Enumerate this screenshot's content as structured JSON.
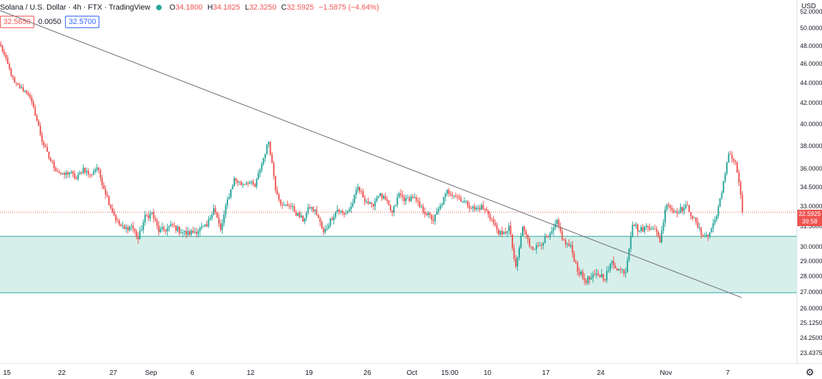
{
  "header": {
    "symbol": "Solana / U.S. Dollar · 4h · FTX · TradingView",
    "open_label": "O",
    "open": "34.1800",
    "high_label": "H",
    "high": "34.1825",
    "low_label": "L",
    "low": "32.3250",
    "close_label": "C",
    "close": "32.5925",
    "change": "−1.5875 (−4.64%)"
  },
  "quote": {
    "bid": "32.5650",
    "spread": "0.0050",
    "ask": "32.5700"
  },
  "axis": {
    "currency": "USD",
    "y_ticks": [
      "52.0000",
      "50.0000",
      "48.0000",
      "46.0000",
      "44.0000",
      "42.0000",
      "40.0000",
      "38.0000",
      "36.0000",
      "34.5000",
      "33.0000",
      "31.5000",
      "30.0000",
      "29.0000",
      "28.0000",
      "27.0000",
      "26.0000",
      "25.1250",
      "24.2500",
      "23.4375"
    ],
    "x_ticks": [
      "15",
      "22",
      "27",
      "Sep",
      "6",
      "12",
      "19",
      "26",
      "Oct",
      "15:00",
      "10",
      "17",
      "24",
      "Nov",
      "7"
    ],
    "last_price": "32.5925",
    "countdown": "39:58"
  },
  "colors": {
    "up": "#26a69a",
    "down": "#ef5350",
    "trendline": "#787b86",
    "zone_fill": "#d6efea",
    "zone_border": "#26a69a"
  },
  "chart_data": {
    "type": "candlestick",
    "title": "Solana / U.S. Dollar · 4h · FTX",
    "y_scale": "log",
    "ylim": [
      22.9,
      53.5
    ],
    "series": [
      {
        "name": "SOL/USD",
        "close_path": [
          [
            0,
            48.0
          ],
          [
            4,
            46.0
          ],
          [
            8,
            44.0
          ],
          [
            12,
            43.5
          ],
          [
            16,
            43.0
          ],
          [
            20,
            41.0
          ],
          [
            24,
            38.5
          ],
          [
            28,
            37.0
          ],
          [
            32,
            36.0
          ],
          [
            36,
            35.5
          ],
          [
            40,
            35.8
          ],
          [
            44,
            35.2
          ],
          [
            48,
            36.1
          ],
          [
            52,
            35.5
          ],
          [
            56,
            36.2
          ],
          [
            60,
            34.5
          ],
          [
            64,
            33.0
          ],
          [
            68,
            31.8
          ],
          [
            72,
            31.3
          ],
          [
            76,
            31.6
          ],
          [
            80,
            30.6
          ],
          [
            84,
            32.2
          ],
          [
            88,
            32.5
          ],
          [
            92,
            31.2
          ],
          [
            96,
            31.3
          ],
          [
            100,
            31.6
          ],
          [
            104,
            31.2
          ],
          [
            108,
            31.0
          ],
          [
            112,
            31.1
          ],
          [
            116,
            31.3
          ],
          [
            120,
            31.5
          ],
          [
            124,
            33.0
          ],
          [
            128,
            31.2
          ],
          [
            132,
            33.5
          ],
          [
            136,
            35.2
          ],
          [
            140,
            34.8
          ],
          [
            144,
            35.0
          ],
          [
            148,
            34.6
          ],
          [
            152,
            36.5
          ],
          [
            156,
            38.5
          ],
          [
            160,
            34.5
          ],
          [
            164,
            33.0
          ],
          [
            168,
            33.2
          ],
          [
            172,
            32.5
          ],
          [
            176,
            32.0
          ],
          [
            180,
            33.0
          ],
          [
            184,
            32.5
          ],
          [
            188,
            31.0
          ],
          [
            192,
            32.0
          ],
          [
            196,
            32.8
          ],
          [
            200,
            32.4
          ],
          [
            204,
            33.0
          ],
          [
            208,
            34.5
          ],
          [
            212,
            33.6
          ],
          [
            216,
            33.0
          ],
          [
            220,
            34.0
          ],
          [
            224,
            33.5
          ],
          [
            228,
            32.5
          ],
          [
            232,
            34.0
          ],
          [
            236,
            33.5
          ],
          [
            240,
            33.8
          ],
          [
            244,
            33.0
          ],
          [
            248,
            32.5
          ],
          [
            252,
            32.0
          ],
          [
            256,
            33.0
          ],
          [
            260,
            34.2
          ],
          [
            264,
            34.0
          ],
          [
            268,
            33.6
          ],
          [
            272,
            33.2
          ],
          [
            276,
            32.8
          ],
          [
            280,
            33.0
          ],
          [
            284,
            32.5
          ],
          [
            288,
            31.5
          ],
          [
            292,
            30.8
          ],
          [
            296,
            31.5
          ],
          [
            300,
            28.5
          ],
          [
            304,
            31.5
          ],
          [
            308,
            30.2
          ],
          [
            312,
            30.0
          ],
          [
            316,
            30.5
          ],
          [
            320,
            30.8
          ],
          [
            324,
            31.8
          ],
          [
            328,
            30.4
          ],
          [
            332,
            30.0
          ],
          [
            336,
            28.5
          ],
          [
            340,
            27.8
          ],
          [
            344,
            27.9
          ],
          [
            348,
            28.2
          ],
          [
            352,
            28.0
          ],
          [
            356,
            29.0
          ],
          [
            360,
            28.5
          ],
          [
            364,
            28.4
          ],
          [
            368,
            31.8
          ],
          [
            372,
            31.2
          ],
          [
            376,
            31.5
          ],
          [
            380,
            31.5
          ],
          [
            384,
            30.5
          ],
          [
            388,
            33.4
          ],
          [
            392,
            32.6
          ],
          [
            396,
            32.8
          ],
          [
            400,
            33.0
          ],
          [
            404,
            32.0
          ],
          [
            408,
            31.0
          ],
          [
            412,
            30.8
          ],
          [
            416,
            32.0
          ],
          [
            420,
            34.0
          ],
          [
            424,
            37.5
          ],
          [
            428,
            36.5
          ],
          [
            430,
            35.0
          ],
          [
            432,
            32.59
          ]
        ]
      }
    ],
    "horizontal_zone": {
      "from": 27.0,
      "to": 30.8
    },
    "trendline": {
      "from": {
        "t": 0,
        "price": 52.2
      },
      "to": {
        "t": 432,
        "price": 26.7
      }
    },
    "last_price_line": 32.59
  }
}
